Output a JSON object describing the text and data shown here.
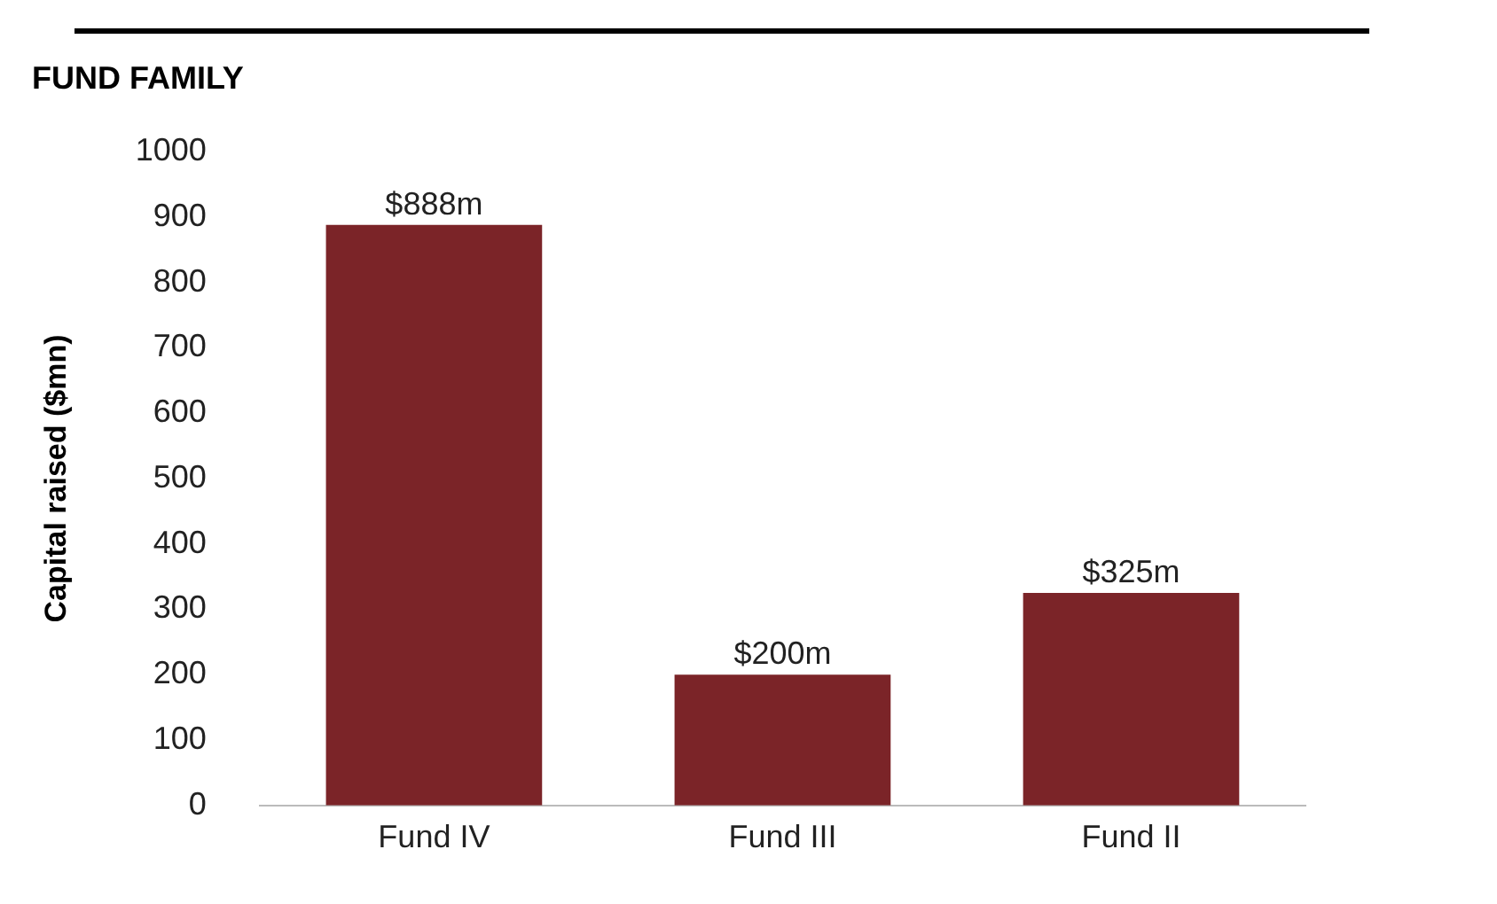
{
  "chart_data": {
    "type": "bar",
    "title": "FUND FAMILY",
    "ylabel": "Capital raised ($mn)",
    "categories": [
      "Fund IV",
      "Fund III",
      "Fund II"
    ],
    "values": [
      888,
      200,
      325
    ],
    "value_labels": [
      "$888m",
      "$200m",
      "$325m"
    ],
    "color": "#7b2428",
    "ylim": [
      0,
      1000
    ],
    "yticks": [
      0,
      100,
      200,
      300,
      400,
      500,
      600,
      700,
      800,
      900,
      1000
    ],
    "grid": false,
    "legend": false
  }
}
